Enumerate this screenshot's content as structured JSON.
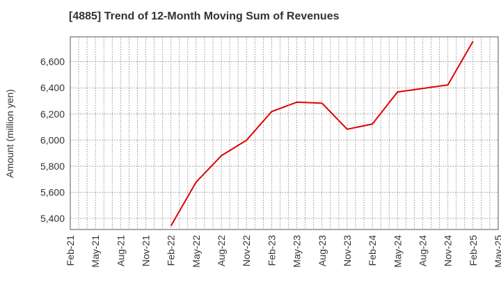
{
  "chart_data": {
    "type": "line",
    "title": "[4885]  Trend of 12-Month Moving Sum of Revenues",
    "xlabel": "",
    "ylabel": "Amount (million yen)",
    "x_tick_labels": [
      "Feb-21",
      "May-21",
      "Aug-21",
      "Nov-21",
      "Feb-22",
      "May-22",
      "Aug-22",
      "Nov-22",
      "Feb-23",
      "May-23",
      "Aug-23",
      "Nov-23",
      "Feb-24",
      "May-24",
      "Aug-24",
      "Nov-24",
      "Feb-25",
      "May-25"
    ],
    "y_ticks": [
      5400,
      5600,
      5800,
      6000,
      6200,
      6400,
      6600
    ],
    "ylim": [
      5315,
      6790
    ],
    "grid": true,
    "series": [
      {
        "color": "#e00000",
        "x": [
          "Feb-22",
          "May-22",
          "Aug-22",
          "Nov-22",
          "Feb-23",
          "May-23",
          "Aug-23",
          "Nov-23",
          "Feb-24",
          "May-24",
          "Aug-24",
          "Nov-24",
          "Feb-25"
        ],
        "values": [
          5343,
          5678,
          5880,
          5998,
          6218,
          6290,
          6282,
          6083,
          6122,
          6368,
          6395,
          6422,
          6756
        ]
      }
    ]
  }
}
